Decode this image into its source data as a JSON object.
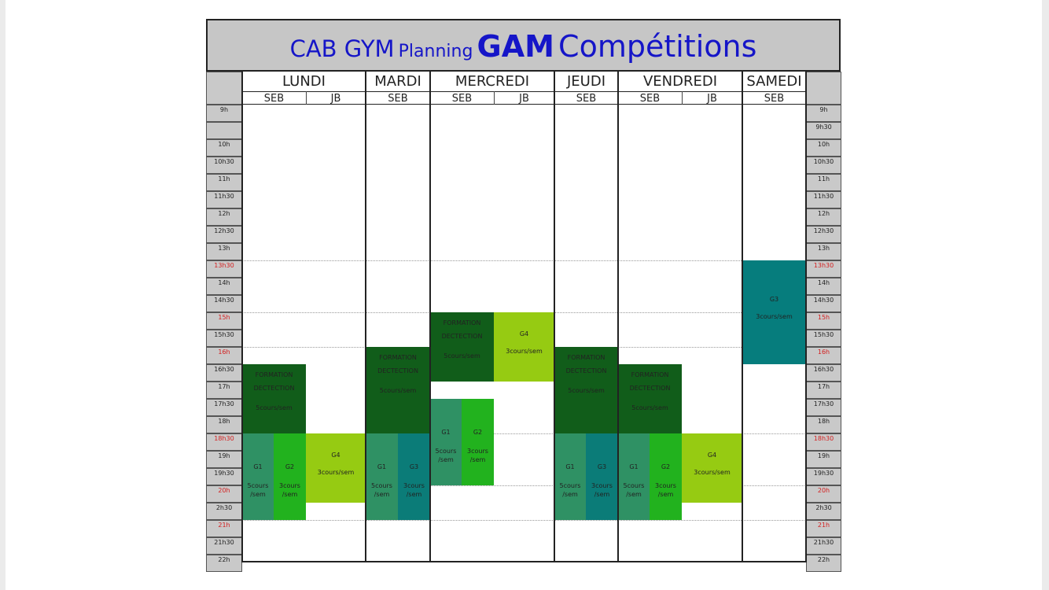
{
  "title": {
    "part1": "CAB GYM",
    "part2": "Planning",
    "part3": "GAM",
    "part4": "Compétitions"
  },
  "days": [
    {
      "name": "LUNDI",
      "subs": [
        "SEB",
        "JB"
      ]
    },
    {
      "name": "MARDI",
      "subs": [
        "SEB"
      ]
    },
    {
      "name": "MERCREDI",
      "subs": [
        "SEB",
        "JB"
      ]
    },
    {
      "name": "JEUDI",
      "subs": [
        "SEB"
      ]
    },
    {
      "name": "VENDREDI",
      "subs": [
        "SEB",
        "JB"
      ]
    },
    {
      "name": "SAMEDI",
      "subs": [
        "SEB"
      ]
    }
  ],
  "times_left": [
    "9h",
    "",
    "10h",
    "10h30",
    "11h",
    "11h30",
    "12h",
    "12h30",
    "13h",
    "13h30",
    "14h",
    "14h30",
    "15h",
    "15h30",
    "16h",
    "16h30",
    "17h",
    "17h30",
    "18h",
    "18h30",
    "19h",
    "19h30",
    "20h",
    "2h30",
    "21h",
    "21h30",
    "22h"
  ],
  "times_right": [
    "9h",
    "9h30",
    "10h",
    "10h30",
    "11h",
    "11h30",
    "12h",
    "12h30",
    "13h",
    "13h30",
    "14h",
    "14h30",
    "15h",
    "15h30",
    "16h",
    "16h30",
    "17h",
    "17h30",
    "18h",
    "18h30",
    "19h",
    "19h30",
    "20h",
    "2h30",
    "21h",
    "21h30",
    "22h"
  ],
  "red_time_labels": [
    "13h30",
    "15h",
    "16h",
    "18h30",
    "20h",
    "21h"
  ],
  "colors": {
    "formation": "#115d1a",
    "g1": "#2f9164",
    "g2": "#22b21e",
    "g3": "#0b7c78",
    "g4": "#96cb12",
    "g3_saturday": "#067d7d",
    "title": "#1515c8",
    "header_band": "#c6c6c6",
    "red_label": "#d42020"
  },
  "blocks": [
    {
      "day": "lundi-seb",
      "start": "16h30",
      "end": "18h30",
      "kind": "formation",
      "lines": [
        "FORMATION",
        "DECTECTION",
        "5cours/sem"
      ]
    },
    {
      "day": "lundi-seb-a",
      "start": "18h30",
      "end": "21h",
      "kind": "g1",
      "lines": [
        "G1",
        "5cours",
        "/sem"
      ]
    },
    {
      "day": "lundi-seb-b",
      "start": "18h30",
      "end": "21h",
      "kind": "g2",
      "lines": [
        "G2",
        "3cours",
        "/sem"
      ]
    },
    {
      "day": "lundi-jb",
      "start": "18h30",
      "end": "20h30",
      "kind": "g4",
      "lines": [
        "G4",
        "3cours/sem"
      ]
    },
    {
      "day": "mardi-seb",
      "start": "16h",
      "end": "18h30",
      "kind": "formation",
      "lines": [
        "FORMATION",
        "DECTECTION",
        "5cours/sem"
      ]
    },
    {
      "day": "mardi-seb-a",
      "start": "18h30",
      "end": "21h",
      "kind": "g1",
      "lines": [
        "G1",
        "5cours",
        "/sem"
      ]
    },
    {
      "day": "mardi-seb-b",
      "start": "18h30",
      "end": "21h",
      "kind": "g3",
      "lines": [
        "G3",
        "3cours",
        "/sem"
      ]
    },
    {
      "day": "mercredi-seb",
      "start": "15h",
      "end": "17h",
      "kind": "formation",
      "lines": [
        "FORMATION",
        "DECTECTION",
        "5cours/sem"
      ]
    },
    {
      "day": "mercredi-jb",
      "start": "15h",
      "end": "17h",
      "kind": "g4",
      "lines": [
        "G4",
        "3cours/sem"
      ]
    },
    {
      "day": "mercredi-seb-a",
      "start": "17h30",
      "end": "20h",
      "kind": "g1",
      "lines": [
        "G1",
        "5cours",
        "/sem"
      ]
    },
    {
      "day": "mercredi-seb-b",
      "start": "17h30",
      "end": "20h",
      "kind": "g2",
      "lines": [
        "G2",
        "3cours",
        "/sem"
      ]
    },
    {
      "day": "jeudi-seb",
      "start": "16h",
      "end": "18h30",
      "kind": "formation",
      "lines": [
        "FORMATION",
        "DECTECTION",
        "5cours/sem"
      ]
    },
    {
      "day": "jeudi-seb-a",
      "start": "18h30",
      "end": "21h",
      "kind": "g1",
      "lines": [
        "G1",
        "5cours",
        "/sem"
      ]
    },
    {
      "day": "jeudi-seb-b",
      "start": "18h30",
      "end": "21h",
      "kind": "g3",
      "lines": [
        "G3",
        "3cours",
        "/sem"
      ]
    },
    {
      "day": "vendredi-seb",
      "start": "16h30",
      "end": "18h30",
      "kind": "formation",
      "lines": [
        "FORMATION",
        "DECTECTION",
        "5cours/sem"
      ]
    },
    {
      "day": "vendredi-seb-a",
      "start": "18h30",
      "end": "21h",
      "kind": "g1",
      "lines": [
        "G1",
        "5cours",
        "/sem"
      ]
    },
    {
      "day": "vendredi-seb-b",
      "start": "18h30",
      "end": "21h",
      "kind": "g2",
      "lines": [
        "G2",
        "3cours",
        "/sem"
      ]
    },
    {
      "day": "vendredi-jb",
      "start": "18h30",
      "end": "20h30",
      "kind": "g4",
      "lines": [
        "G4",
        "3cours/sem"
      ]
    },
    {
      "day": "samedi-seb",
      "start": "13h30",
      "end": "16h30",
      "kind": "g3_saturday",
      "lines": [
        "G3",
        "3cours/sem"
      ]
    }
  ]
}
